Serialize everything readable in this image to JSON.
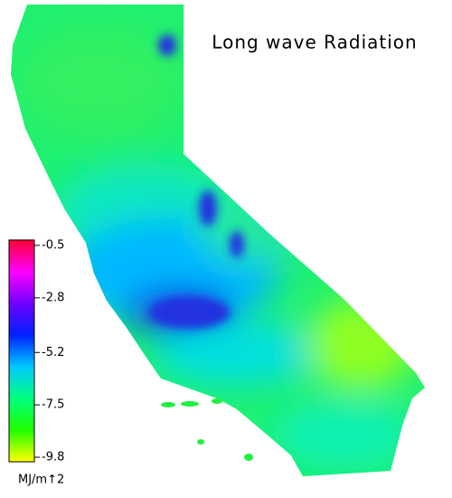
{
  "title": "Long wave Radiation",
  "colorbar": {
    "ticks": [
      -0.5,
      -2.8,
      -5.2,
      -7.5,
      -9.8
    ],
    "unit": "MJ/m↑2",
    "colors": [
      "#ff0030",
      "#ff00ff",
      "#7000ff",
      "#0020ff",
      "#00c8ff",
      "#00ff80",
      "#20ff00",
      "#ffff00"
    ]
  }
}
